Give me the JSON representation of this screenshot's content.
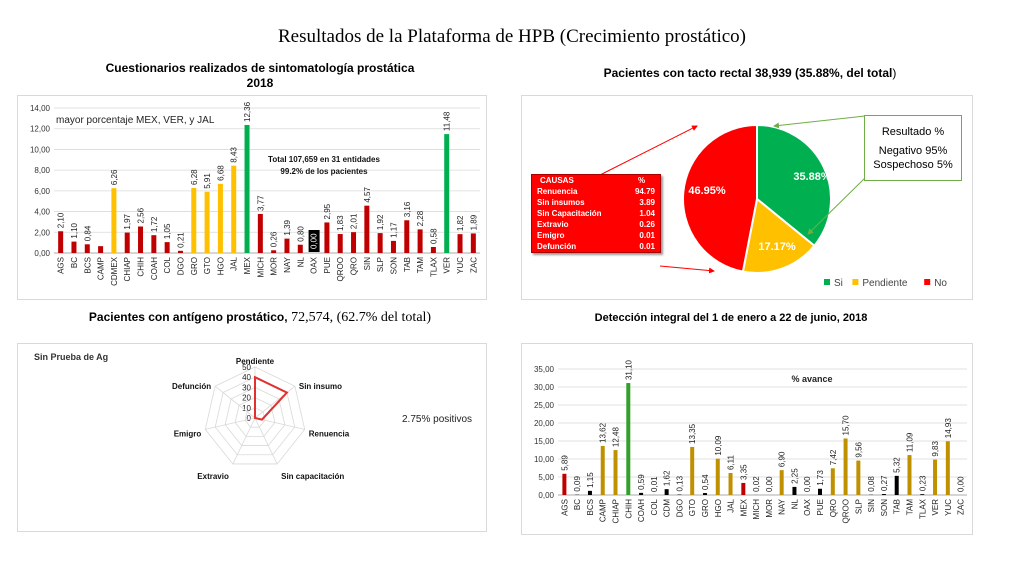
{
  "page_title": "Resultados de la Plataforma de HPB (Crecimiento prostático)",
  "panel1": {
    "title_line1": "Cuestionarios realizados de sintomatología prostática",
    "title_line2": "2018",
    "annotation": "mayor porcentaje MEX, VER, y JAL",
    "total_line1": "Total 107,659 en 31 entidades",
    "total_line2": "99.2% de los pacientes"
  },
  "panel2": {
    "title_bold": "Pacientes con tacto rectal 38,939 (35.88%, del total",
    "title_end": ")",
    "causas": {
      "header": [
        "CAUSAS",
        "%"
      ],
      "rows": [
        [
          "Renuencia",
          "94.79"
        ],
        [
          "Sin insumos",
          "3.89"
        ],
        [
          "Sin Capacitación",
          "1.04"
        ],
        [
          "Extravio",
          "0.26"
        ],
        [
          "Emigro",
          "0.01"
        ],
        [
          "Defunción",
          "0.01"
        ]
      ]
    },
    "resultado": {
      "header": "Resultado   %",
      "line1": "Negativo   95%",
      "line2": "Sospechoso 5%"
    }
  },
  "panel3": {
    "title_bold": "Pacientes con antígeno prostático,",
    "title_normal": " 72,574, (62.7% del total)",
    "inner_title": "Sin Prueba de Ag",
    "positivos": "2.75% positivos"
  },
  "panel4": {
    "title": "Detección integral del 1 de enero a 22 de junio, 2018"
  },
  "chart_data": [
    {
      "type": "bar",
      "categories": [
        "AGS",
        "BC",
        "BCS",
        "CAMP",
        "CDMEX",
        "CHIAP",
        "CHIH",
        "COAH",
        "COL",
        "DGO",
        "GRO",
        "GTO",
        "HGO",
        "JAL",
        "MEX",
        "MICH",
        "MOR",
        "NAY",
        "NL",
        "OAX",
        "PUE",
        "QROO",
        "QRO",
        "SIN",
        "SLP",
        "SON",
        "TAB",
        "TAM",
        "TLAX",
        "VER",
        "YUC",
        "ZAC"
      ],
      "values": [
        2.1,
        1.1,
        0.84,
        0.66,
        6.26,
        1.97,
        2.56,
        1.72,
        1.05,
        0.21,
        6.28,
        5.91,
        6.68,
        8.43,
        12.36,
        3.77,
        0.26,
        1.39,
        0.8,
        0.0,
        2.95,
        1.83,
        2.01,
        4.57,
        1.92,
        1.17,
        3.16,
        2.28,
        0.58,
        11.48,
        1.82,
        1.89
      ],
      "labels": [
        "2,10",
        "1,10",
        "0,84",
        "",
        "6,26",
        "1,97",
        "2,56",
        "1,72",
        "1,05",
        "0,21",
        "6,28",
        "5,91",
        "6,68",
        "8,43",
        "12,36",
        "3,77",
        "0,26",
        "1,39",
        "0,80",
        "0,00",
        "2,95",
        "1,83",
        "2,01",
        "4,57",
        "1,92",
        "1,17",
        "3,16",
        "2,28",
        "0,58",
        "11,48",
        "1,82",
        "1,89"
      ],
      "colors": [
        "#c00000",
        "#c00000",
        "#c00000",
        "#c00000",
        "#ffc000",
        "#c00000",
        "#c00000",
        "#c00000",
        "#c00000",
        "#c00000",
        "#ffc000",
        "#ffc000",
        "#ffc000",
        "#ffc000",
        "#00b050",
        "#c00000",
        "#c00000",
        "#c00000",
        "#c00000",
        "#000000",
        "#c00000",
        "#c00000",
        "#c00000",
        "#c00000",
        "#c00000",
        "#c00000",
        "#c00000",
        "#c00000",
        "#c00000",
        "#00b050",
        "#c00000",
        "#c00000"
      ],
      "yticks": [
        "0,00",
        "2,00",
        "4,00",
        "6,00",
        "8,00",
        "10,00",
        "12,00",
        "14,00"
      ],
      "ylim": [
        0,
        14
      ]
    },
    {
      "type": "pie",
      "slices": [
        {
          "name": "Si",
          "value": 35.88,
          "label": "35.88%",
          "color": "#00b050"
        },
        {
          "name": "Pendiente",
          "value": 17.17,
          "label": "17.17%",
          "color": "#ffc000"
        },
        {
          "name": "No",
          "value": 46.95,
          "label": "46.95%",
          "color": "#ff0000"
        }
      ],
      "legend": "bottom"
    },
    {
      "type": "radar",
      "axes": [
        "Pendiente",
        "Sin insumo",
        "Renuencia",
        "Sin capacitación",
        "Extravio",
        "Emigro",
        "Defunción"
      ],
      "values": [
        40,
        40,
        7,
        0,
        0,
        0,
        0
      ],
      "rticks": [
        "0",
        "10",
        "20",
        "30",
        "40",
        "50"
      ],
      "rlim": [
        0,
        50
      ],
      "color": "#e03030"
    },
    {
      "type": "bar",
      "categories": [
        "AGS",
        "BC",
        "BCS",
        "CAMP",
        "CHIAP",
        "CHIH",
        "COAH",
        "COL",
        "CDM",
        "DGO",
        "GTO",
        "GRO",
        "HGO",
        "JAL",
        "MEX",
        "MICH",
        "MOR",
        "NAY",
        "NL",
        "OAX",
        "PUE",
        "QRO",
        "QROO",
        "SLP",
        "SIN",
        "SON",
        "TAB",
        "TAM",
        "TLAX",
        "VER",
        "YUC",
        "ZAC"
      ],
      "values": [
        5.89,
        0.09,
        1.15,
        13.62,
        12.48,
        31.1,
        0.59,
        0.01,
        1.62,
        0.13,
        13.35,
        0.54,
        10.09,
        6.11,
        3.35,
        0.02,
        0.0,
        6.9,
        2.25,
        0.0,
        1.73,
        7.42,
        15.7,
        9.56,
        0.08,
        0.27,
        5.32,
        11.09,
        0.23,
        9.83,
        14.93,
        0.0
      ],
      "labels": [
        "5,89",
        "0,09",
        "1,15",
        "13,62",
        "12,48",
        "31,10",
        "0,59",
        "0,01",
        "1,62",
        "0,13",
        "13,35",
        "0,54",
        "10,09",
        "6,11",
        "3,35",
        "0,02",
        "0,00",
        "6,90",
        "2,25",
        "0,00",
        "1,73",
        "7,42",
        "15,70",
        "9,56",
        "0,08",
        "0,27",
        "5,32",
        "11,09",
        "0,23",
        "9,83",
        "14,93",
        "0,00"
      ],
      "colors": [
        "#c00000",
        "#000000",
        "#000000",
        "#bf9000",
        "#bf9000",
        "#33a02c",
        "#000000",
        "#000000",
        "#000000",
        "#000000",
        "#bf9000",
        "#000000",
        "#bf9000",
        "#bf9000",
        "#c00000",
        "#000000",
        "#000000",
        "#bf9000",
        "#000000",
        "#000000",
        "#000000",
        "#bf9000",
        "#bf9000",
        "#bf9000",
        "#000000",
        "#000000",
        "#000000",
        "#bf9000",
        "#000000",
        "#bf9000",
        "#bf9000",
        "#000000"
      ],
      "yticks": [
        "0,00",
        "5,00",
        "10,00",
        "15,00",
        "20,00",
        "25,00",
        "30,00",
        "35,00"
      ],
      "ylim": [
        0,
        35
      ],
      "legend_label": "% avance"
    }
  ]
}
